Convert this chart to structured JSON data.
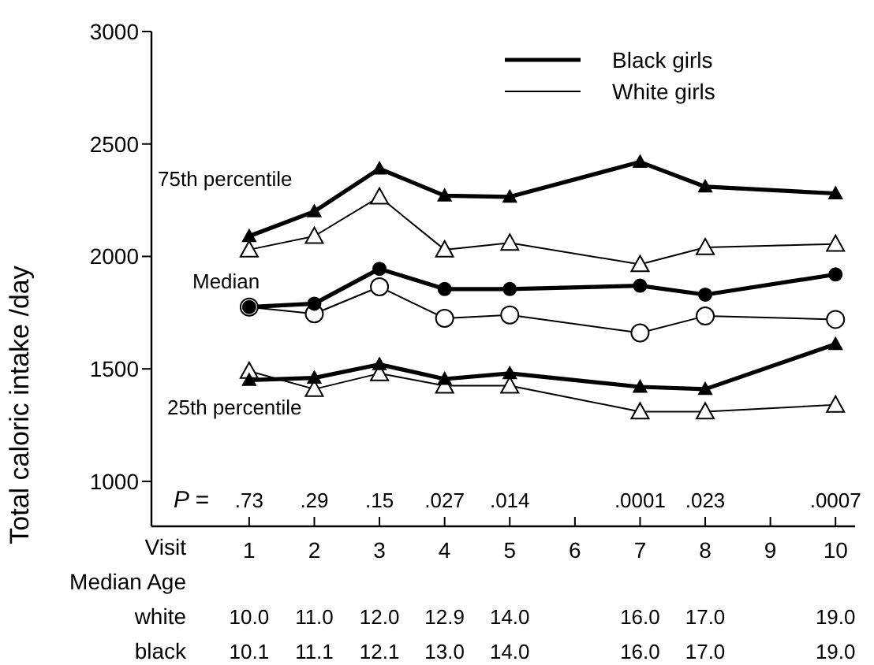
{
  "chart_data": {
    "type": "line",
    "xlabel": "Visit",
    "ylabel": "Total caloric intake /day",
    "x": [
      1,
      2,
      3,
      4,
      5,
      7,
      8,
      10
    ],
    "series": [
      {
        "name": "Black girls",
        "color": "#000000",
        "values": [
          2090,
          2200,
          2390,
          2270,
          2265,
          2420,
          2310,
          2280
        ]
      },
      {
        "name": "White girls",
        "color": "#000000",
        "values": [
          2030,
          2090,
          2265,
          2030,
          2060,
          1965,
          2040,
          2055
        ]
      },
      {
        "color": "#000000",
        "marker": "circle",
        "values": [
          1775,
          1790,
          1945,
          1855,
          1855,
          1870,
          1830,
          1920
        ]
      },
      {
        "color": "#000000",
        "marker": "circle",
        "values": [
          1775,
          1745,
          1865,
          1725,
          1740,
          1660,
          1735,
          1720
        ]
      },
      {
        "color": "#000000",
        "values": [
          1450,
          1460,
          1520,
          1455,
          1480,
          1420,
          1410,
          1610
        ]
      },
      {
        "color": "#000000",
        "values": [
          1490,
          1410,
          1480,
          1425,
          1425,
          1310,
          1310,
          1340
        ]
      }
    ],
    "marker": "triangle",
    "xlim": [
      -0.5,
      10.3
    ],
    "xticks": [
      1,
      2,
      3,
      4,
      5,
      6,
      7,
      8,
      9,
      10
    ],
    "ylim": [
      800,
      3000
    ],
    "yticks": [
      1000,
      1500,
      2000,
      2500,
      3000
    ],
    "grid": false,
    "legend": "top right",
    "annotations": [
      "75th percentile",
      "Median",
      "25th percentile",
      "P =",
      ".73",
      ".29",
      ".15",
      ".027",
      ".014",
      ".0001",
      ".023",
      ".0007",
      "Median Age",
      "white",
      "10.0",
      "11.0",
      "12.0",
      "12.9",
      "14.0",
      "16.0",
      "17.0",
      "19.0",
      "black",
      "10.1",
      "11.1",
      "12.1",
      "13.0",
      "14.0",
      "16.0",
      "17.0",
      "19.0"
    ]
  }
}
